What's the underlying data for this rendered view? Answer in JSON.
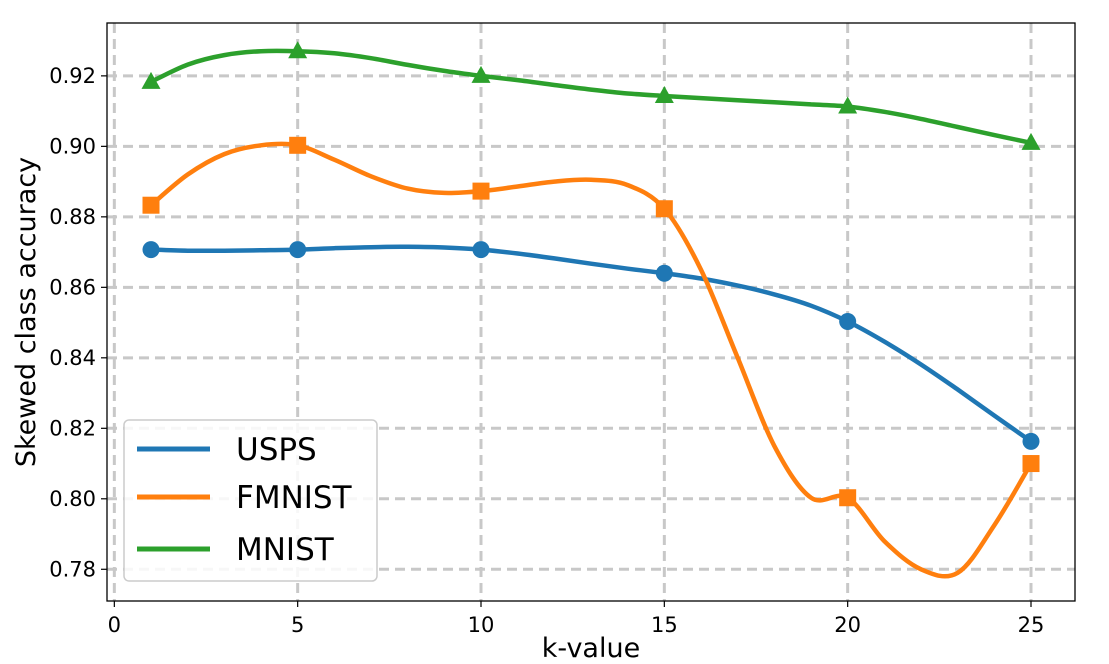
{
  "chart_data": {
    "type": "line",
    "title": "",
    "xlabel": "k-value",
    "ylabel": "Skewed class accuracy",
    "xlim": [
      -0.2,
      26.2
    ],
    "ylim": [
      0.771,
      0.935
    ],
    "xticks": [
      0,
      5,
      10,
      15,
      20,
      25
    ],
    "yticks": [
      0.78,
      0.8,
      0.82,
      0.84,
      0.86,
      0.88,
      0.9,
      0.92
    ],
    "ytick_labels": [
      "0.78",
      "0.80",
      "0.82",
      "0.84",
      "0.86",
      "0.88",
      "0.90",
      "0.92"
    ],
    "grid": true,
    "legend_position": "lower-left",
    "x": [
      1,
      5,
      10,
      15,
      20,
      25
    ],
    "series": [
      {
        "name": "USPS",
        "color": "#1f77b4",
        "marker": "circle",
        "values": [
          0.8707,
          0.8707,
          0.8707,
          0.864,
          0.8503,
          0.8163
        ],
        "curve": [
          [
            1,
            0.8707
          ],
          [
            2,
            0.8704
          ],
          [
            3,
            0.8704
          ],
          [
            4,
            0.8705
          ],
          [
            5,
            0.8707
          ],
          [
            6,
            0.8711
          ],
          [
            7,
            0.8714
          ],
          [
            8,
            0.8715
          ],
          [
            9,
            0.8713
          ],
          [
            10,
            0.8707
          ],
          [
            11,
            0.8696
          ],
          [
            12,
            0.8682
          ],
          [
            13,
            0.8667
          ],
          [
            14,
            0.8653
          ],
          [
            15,
            0.864
          ],
          [
            16,
            0.8625
          ],
          [
            17,
            0.8605
          ],
          [
            18,
            0.858
          ],
          [
            19,
            0.8548
          ],
          [
            20,
            0.8503
          ],
          [
            21,
            0.8446
          ],
          [
            22,
            0.8381
          ],
          [
            23,
            0.831
          ],
          [
            24,
            0.8236
          ],
          [
            25,
            0.8163
          ]
        ]
      },
      {
        "name": "FMNIST",
        "color": "#ff7f0e",
        "marker": "square",
        "values": [
          0.8833,
          0.9003,
          0.8873,
          0.8823,
          0.8003,
          0.81
        ],
        "curve": [
          [
            1,
            0.8833
          ],
          [
            2,
            0.892
          ],
          [
            3,
            0.8978
          ],
          [
            4,
            0.9003
          ],
          [
            5,
            0.9003
          ],
          [
            6,
            0.8962
          ],
          [
            7,
            0.8915
          ],
          [
            8,
            0.888
          ],
          [
            9,
            0.8868
          ],
          [
            10,
            0.8873
          ],
          [
            11,
            0.8886
          ],
          [
            12,
            0.89
          ],
          [
            13,
            0.8905
          ],
          [
            14,
            0.889
          ],
          [
            15,
            0.8823
          ],
          [
            16,
            0.865
          ],
          [
            17,
            0.84
          ],
          [
            18,
            0.815
          ],
          [
            19,
            0.8003
          ],
          [
            20,
            0.8003
          ],
          [
            21,
            0.788
          ],
          [
            22,
            0.78
          ],
          [
            23,
            0.779
          ],
          [
            24,
            0.7925
          ],
          [
            25,
            0.81
          ]
        ]
      },
      {
        "name": "MNIST",
        "color": "#2ca02c",
        "marker": "triangle",
        "values": [
          0.9183,
          0.927,
          0.92,
          0.9143,
          0.9113,
          0.901
        ],
        "curve": [
          [
            1,
            0.9183
          ],
          [
            2,
            0.9232
          ],
          [
            3,
            0.9259
          ],
          [
            4,
            0.927
          ],
          [
            5,
            0.927
          ],
          [
            6,
            0.9264
          ],
          [
            7,
            0.925
          ],
          [
            8,
            0.9231
          ],
          [
            9,
            0.9214
          ],
          [
            10,
            0.92
          ],
          [
            11,
            0.9188
          ],
          [
            12,
            0.9174
          ],
          [
            13,
            0.9161
          ],
          [
            14,
            0.915
          ],
          [
            15,
            0.9143
          ],
          [
            16,
            0.9137
          ],
          [
            17,
            0.9131
          ],
          [
            18,
            0.9125
          ],
          [
            19,
            0.9119
          ],
          [
            20,
            0.9113
          ],
          [
            21,
            0.9098
          ],
          [
            22,
            0.9078
          ],
          [
            23,
            0.9055
          ],
          [
            24,
            0.9032
          ],
          [
            25,
            0.901
          ]
        ]
      }
    ]
  }
}
